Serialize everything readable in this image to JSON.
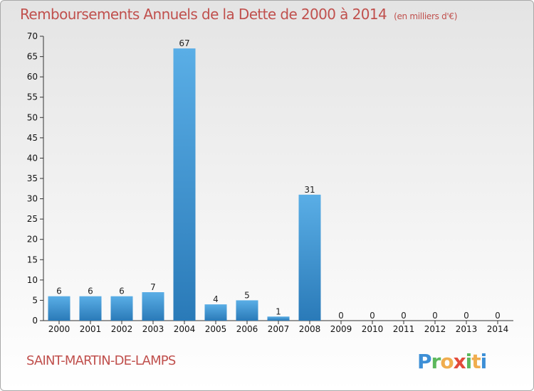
{
  "title": "Remboursements Annuels de la Dette de 2000 à 2014",
  "subtitle": "(en milliers d'€)",
  "commune": "SAINT-MARTIN-DE-LAMPS",
  "logo_text": "Proxiti",
  "colors": {
    "title": "#c0504d",
    "bar_light": "#5aaee6",
    "bar_dark": "#2a7ab8",
    "axis": "#333333"
  },
  "chart_data": {
    "type": "bar",
    "title": "Remboursements Annuels de la Dette de 2000 à 2014",
    "categories": [
      "2000",
      "2001",
      "2002",
      "2003",
      "2004",
      "2005",
      "2006",
      "2007",
      "2008",
      "2009",
      "2010",
      "2011",
      "2012",
      "2013",
      "2014"
    ],
    "values": [
      6,
      6,
      6,
      7,
      67,
      4,
      5,
      1,
      31,
      0,
      0,
      0,
      0,
      0,
      0
    ],
    "data_labels": [
      "6",
      "6",
      "6",
      "7",
      "67",
      "4",
      "5",
      "1",
      "31",
      "0",
      "0",
      "0",
      "0",
      "0",
      "0"
    ],
    "ylim": [
      0,
      70
    ],
    "yticks": [
      0,
      5,
      10,
      15,
      20,
      25,
      30,
      35,
      40,
      45,
      50,
      55,
      60,
      65,
      70
    ],
    "xlabel": "",
    "ylabel": "",
    "grid": false,
    "legend": "none"
  }
}
